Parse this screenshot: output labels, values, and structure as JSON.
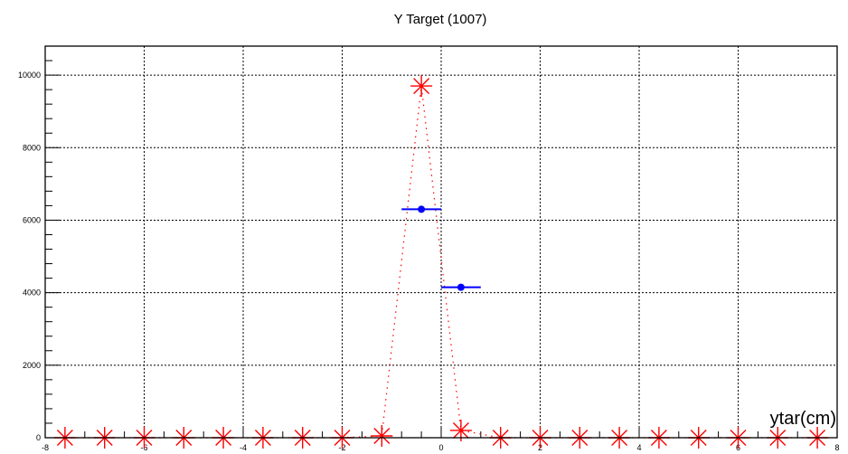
{
  "chart_data": {
    "type": "scatter",
    "title": "Y Target (1007)",
    "xlabel": "ytar(cm)",
    "ylabel": "",
    "xlim": [
      -8,
      8
    ],
    "ylim": [
      0,
      10800
    ],
    "grid": true,
    "x_ticks": [
      -8,
      -6,
      -4,
      -2,
      0,
      2,
      4,
      6,
      8
    ],
    "y_ticks": [
      0,
      2000,
      4000,
      6000,
      8000,
      10000
    ],
    "x_tick_labels": [
      "-8",
      "-6",
      "-4",
      "-2",
      "0",
      "2",
      "4",
      "6",
      "8"
    ],
    "y_tick_labels": [
      "0",
      "2000",
      "4000",
      "6000",
      "8000",
      "10000"
    ],
    "series": [
      {
        "style": "red-star-dotted",
        "color": "#ff0000",
        "x": [
          -7.6,
          -6.8,
          -6.0,
          -5.2,
          -4.4,
          -3.6,
          -2.8,
          -2.0,
          -1.2,
          -0.4,
          0.4,
          1.2,
          2.0,
          2.8,
          3.6,
          4.4,
          5.2,
          6.0,
          6.8,
          7.6
        ],
        "y": [
          0,
          0,
          0,
          0,
          0,
          0,
          0,
          0,
          50,
          9700,
          200,
          0,
          0,
          0,
          0,
          0,
          0,
          0,
          0,
          0
        ]
      },
      {
        "style": "blue-point-xerror",
        "color": "#0000ff",
        "x": [
          -0.4,
          0.4
        ],
        "y": [
          6300,
          4150
        ],
        "xerr": [
          0.4,
          0.4
        ]
      }
    ]
  }
}
